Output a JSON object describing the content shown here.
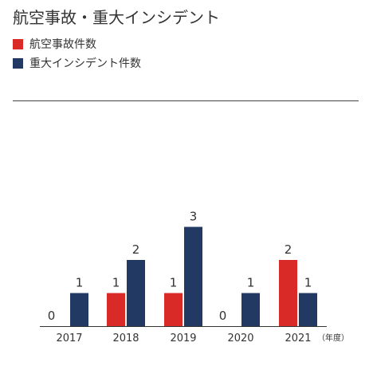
{
  "chart_data": {
    "type": "bar",
    "title": "航空事故・重大インシデント",
    "categories": [
      "2017",
      "2018",
      "2019",
      "2020",
      "2021"
    ],
    "x_unit": "（年度）",
    "series": [
      {
        "name": "航空事故件数",
        "color": "#d92a27",
        "values": [
          0,
          1,
          1,
          0,
          2
        ]
      },
      {
        "name": "重大インシデント件数",
        "color": "#223a63",
        "values": [
          1,
          2,
          3,
          1,
          1
        ]
      }
    ],
    "ylim": [
      0,
      3
    ],
    "grid": false,
    "legend": "top-left"
  }
}
